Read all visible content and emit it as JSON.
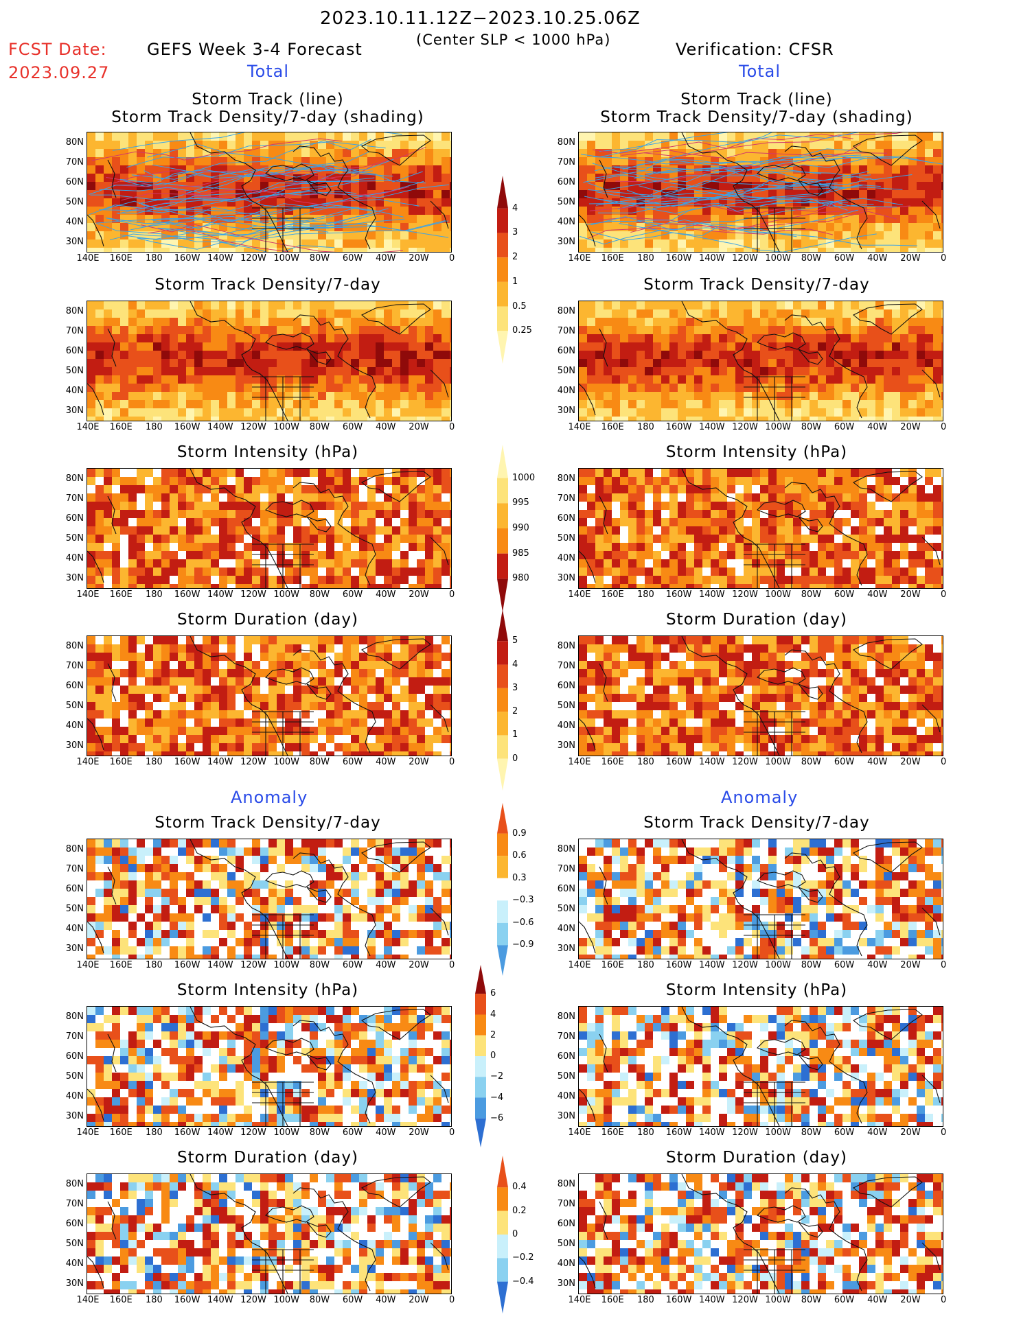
{
  "header": {
    "period": "2023.10.11.12Z−2023.10.25.06Z",
    "criterion": "(Center SLP < 1000 hPa)",
    "fcst_label": "FCST Date:",
    "fcst_date": "2023.09.27",
    "left_title": "GEFS Week 3-4 Forecast",
    "right_title": "Verification: CFSR",
    "total_label": "Total",
    "anomaly_label": "Anomaly"
  },
  "panel_titles": {
    "track": [
      "Storm Track (line)",
      "Storm Track Density/7-day (shading)"
    ],
    "density": "Storm Track Density/7-day",
    "intensity": "Storm Intensity (hPa)",
    "duration": "Storm Duration (day)"
  },
  "axes": {
    "lat_labels": [
      "80N",
      "70N",
      "60N",
      "50N",
      "40N",
      "30N"
    ],
    "lon_labels": [
      "140E",
      "160E",
      "180",
      "160W",
      "140W",
      "120W",
      "100W",
      "80W",
      "60W",
      "40W",
      "20W",
      "0"
    ]
  },
  "colorbars": {
    "density": [
      "4",
      "3",
      "2",
      "1",
      "0.5",
      "0.25"
    ],
    "intensity": [
      "1000",
      "995",
      "990",
      "985",
      "980"
    ],
    "duration": [
      "5",
      "4",
      "3",
      "2",
      "1",
      "0"
    ],
    "density_anom": [
      "0.9",
      "0.6",
      "0.3",
      "−0.3",
      "−0.6",
      "−0.9"
    ],
    "intensity_anom": [
      "6",
      "4",
      "2",
      "0",
      "−2",
      "−4",
      "−6"
    ],
    "duration_anom": [
      "0.4",
      "0.2",
      "0",
      "−0.2",
      "−0.4"
    ]
  },
  "colors": {
    "warm": [
      "#fff5b0",
      "#fde37a",
      "#fcb630",
      "#f88a14",
      "#e8501a",
      "#c21d12",
      "#8f0a0a"
    ],
    "cool": [
      "#c9f0fb",
      "#8ad1f0",
      "#4b9be0",
      "#2d6fd2"
    ],
    "track_line": "#3aa3e8",
    "track_line_red": "#d23a6a"
  }
}
